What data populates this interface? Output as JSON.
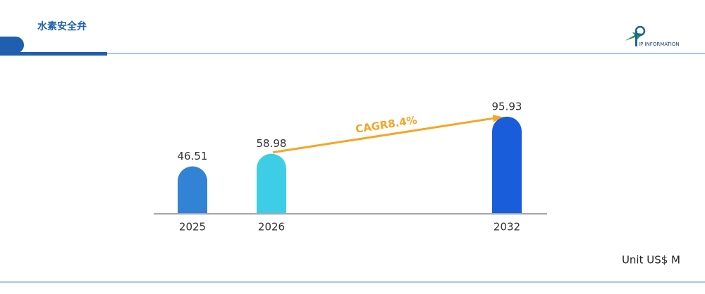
{
  "header": {
    "title": "水素安全弁",
    "logo_text": "IP INFORMATION"
  },
  "chart_data": {
    "type": "bar",
    "categories": [
      "2025",
      "2026",
      "2032"
    ],
    "values": [
      46.51,
      58.98,
      95.93
    ],
    "colors": [
      "#3282d6",
      "#3ecde6",
      "#1a5ddb"
    ],
    "annotation": "CAGR8.4%",
    "annotation_color": "#f5a623",
    "unit": "Unit US$ M"
  }
}
